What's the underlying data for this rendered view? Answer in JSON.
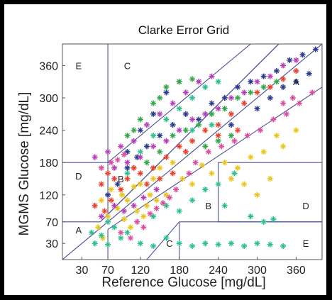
{
  "chart_data": {
    "type": "scatter",
    "title": "Clarke Error Grid",
    "xlabel": "Reference Glucose [mg/dL]",
    "ylabel": "MGMS Glucose [mg/dL]",
    "xlim": [
      0,
      400
    ],
    "ylim": [
      0,
      400
    ],
    "x_ticks": [
      30,
      70,
      120,
      180,
      240,
      300,
      360
    ],
    "y_ticks": [
      30,
      70,
      120,
      180,
      240,
      300,
      360
    ],
    "grid": false,
    "legend": "none",
    "zone_labels": [
      {
        "label": "A",
        "x": 25,
        "y": 55
      },
      {
        "label": "A",
        "x": 360,
        "y": 330
      },
      {
        "label": "B",
        "x": 90,
        "y": 150
      },
      {
        "label": "B",
        "x": 225,
        "y": 100
      },
      {
        "label": "C",
        "x": 100,
        "y": 360
      },
      {
        "label": "C",
        "x": 165,
        "y": 30
      },
      {
        "label": "D",
        "x": 25,
        "y": 155
      },
      {
        "label": "D",
        "x": 375,
        "y": 100
      },
      {
        "label": "E",
        "x": 25,
        "y": 360
      },
      {
        "label": "E",
        "x": 375,
        "y": 30
      }
    ],
    "series": [
      {
        "color": "#e8c61a",
        "points": [
          [
            55,
            60
          ],
          [
            62,
            40
          ],
          [
            70,
            80
          ],
          [
            85,
            95
          ],
          [
            92,
            120
          ],
          [
            100,
            110
          ],
          [
            110,
            135
          ],
          [
            120,
            140
          ],
          [
            130,
            100
          ],
          [
            140,
            150
          ],
          [
            150,
            170
          ],
          [
            160,
            120
          ],
          [
            170,
            180
          ],
          [
            185,
            150
          ],
          [
            200,
            140
          ],
          [
            215,
            175
          ],
          [
            230,
            160
          ],
          [
            250,
            180
          ],
          [
            270,
            170
          ],
          [
            290,
            190
          ],
          [
            310,
            200
          ],
          [
            330,
            230
          ],
          [
            95,
            75
          ],
          [
            105,
            60
          ],
          [
            115,
            90
          ],
          [
            125,
            80
          ],
          [
            135,
            120
          ],
          [
            145,
            110
          ],
          [
            60,
            110
          ],
          [
            75,
            130
          ],
          [
            260,
            150
          ],
          [
            280,
            140
          ],
          [
            300,
            120
          ],
          [
            320,
            150
          ],
          [
            340,
            210
          ],
          [
            360,
            240
          ]
        ]
      },
      {
        "color": "#2dbf8f",
        "points": [
          [
            50,
            30
          ],
          [
            60,
            45
          ],
          [
            70,
            28
          ],
          [
            80,
            60
          ],
          [
            90,
            40
          ],
          [
            100,
            50
          ],
          [
            120,
            30
          ],
          [
            140,
            25
          ],
          [
            160,
            40
          ],
          [
            180,
            30
          ],
          [
            200,
            25
          ],
          [
            220,
            30
          ],
          [
            240,
            28
          ],
          [
            260,
            30
          ],
          [
            280,
            25
          ],
          [
            300,
            30
          ],
          [
            320,
            28
          ],
          [
            340,
            25
          ],
          [
            140,
            80
          ],
          [
            160,
            100
          ],
          [
            180,
            90
          ],
          [
            200,
            110
          ],
          [
            220,
            130
          ],
          [
            240,
            140
          ],
          [
            250,
            100
          ],
          [
            265,
            160
          ],
          [
            290,
            80
          ],
          [
            310,
            70
          ],
          [
            325,
            75
          ],
          [
            100,
            160
          ],
          [
            120,
            200
          ],
          [
            140,
            230
          ],
          [
            160,
            260
          ],
          [
            180,
            280
          ],
          [
            200,
            300
          ],
          [
            220,
            320
          ],
          [
            240,
            330
          ],
          [
            200,
            240
          ],
          [
            230,
            250
          ],
          [
            70,
            70
          ],
          [
            45,
            50
          ]
        ]
      },
      {
        "color": "#2b3a8c",
        "points": [
          [
            70,
            120
          ],
          [
            85,
            140
          ],
          [
            100,
            170
          ],
          [
            115,
            190
          ],
          [
            130,
            210
          ],
          [
            150,
            230
          ],
          [
            170,
            250
          ],
          [
            190,
            270
          ],
          [
            210,
            260
          ],
          [
            230,
            290
          ],
          [
            250,
            300
          ],
          [
            270,
            320
          ],
          [
            290,
            330
          ],
          [
            310,
            340
          ],
          [
            330,
            350
          ],
          [
            350,
            370
          ],
          [
            370,
            380
          ],
          [
            390,
            390
          ],
          [
            160,
            310
          ],
          [
            180,
            330
          ],
          [
            300,
            280
          ],
          [
            320,
            300
          ],
          [
            340,
            320
          ],
          [
            360,
            330
          ],
          [
            380,
            345
          ],
          [
            100,
            200
          ],
          [
            120,
            240
          ],
          [
            140,
            270
          ],
          [
            260,
            250
          ]
        ]
      },
      {
        "color": "#e8402a",
        "points": [
          [
            60,
            140
          ],
          [
            70,
            160
          ],
          [
            80,
            150
          ],
          [
            90,
            130
          ],
          [
            100,
            150
          ],
          [
            110,
            170
          ],
          [
            120,
            160
          ],
          [
            130,
            140
          ],
          [
            140,
            170
          ],
          [
            160,
            190
          ],
          [
            180,
            210
          ],
          [
            200,
            220
          ],
          [
            220,
            240
          ],
          [
            240,
            250
          ],
          [
            260,
            270
          ],
          [
            280,
            290
          ],
          [
            300,
            310
          ],
          [
            320,
            320
          ],
          [
            340,
            335
          ],
          [
            360,
            350
          ],
          [
            50,
            100
          ],
          [
            65,
            90
          ],
          [
            75,
            110
          ],
          [
            150,
            150
          ],
          [
            170,
            160
          ],
          [
            190,
            200
          ],
          [
            240,
            230
          ],
          [
            270,
            240
          ]
        ]
      },
      {
        "color": "#b43fb8",
        "points": [
          [
            50,
            190
          ],
          [
            70,
            200
          ],
          [
            90,
            210
          ],
          [
            110,
            220
          ],
          [
            130,
            250
          ],
          [
            150,
            270
          ],
          [
            170,
            290
          ],
          [
            190,
            310
          ],
          [
            210,
            330
          ],
          [
            230,
            340
          ],
          [
            80,
            170
          ],
          [
            100,
            180
          ],
          [
            120,
            190
          ],
          [
            140,
            210
          ],
          [
            160,
            220
          ],
          [
            180,
            240
          ],
          [
            200,
            260
          ],
          [
            220,
            270
          ],
          [
            240,
            280
          ],
          [
            260,
            300
          ],
          [
            280,
            310
          ],
          [
            300,
            330
          ],
          [
            320,
            340
          ],
          [
            340,
            360
          ],
          [
            360,
            370
          ],
          [
            60,
            80
          ],
          [
            80,
            100
          ],
          [
            95,
            90
          ],
          [
            110,
            100
          ],
          [
            125,
            115
          ],
          [
            145,
            130
          ]
        ]
      },
      {
        "color": "#35a64a",
        "points": [
          [
            130,
            180
          ],
          [
            150,
            200
          ],
          [
            170,
            230
          ],
          [
            190,
            240
          ],
          [
            210,
            250
          ],
          [
            230,
            270
          ],
          [
            250,
            280
          ],
          [
            270,
            300
          ],
          [
            290,
            310
          ],
          [
            310,
            320
          ],
          [
            330,
            330
          ],
          [
            180,
            330
          ],
          [
            200,
            335
          ],
          [
            160,
            320
          ],
          [
            150,
            300
          ],
          [
            140,
            290
          ],
          [
            120,
            260
          ],
          [
            110,
            240
          ],
          [
            100,
            230
          ],
          [
            220,
            210
          ],
          [
            240,
            220
          ],
          [
            260,
            230
          ]
        ]
      },
      {
        "color": "#d94f9f",
        "points": [
          [
            90,
            50
          ],
          [
            105,
            40
          ],
          [
            115,
            70
          ],
          [
            125,
            60
          ],
          [
            135,
            85
          ],
          [
            145,
            95
          ],
          [
            155,
            105
          ],
          [
            165,
            115
          ],
          [
            175,
            130
          ],
          [
            195,
            160
          ],
          [
            205,
            180
          ],
          [
            225,
            200
          ],
          [
            245,
            210
          ],
          [
            265,
            220
          ],
          [
            285,
            230
          ],
          [
            305,
            240
          ],
          [
            325,
            260
          ],
          [
            345,
            270
          ],
          [
            365,
            290
          ],
          [
            385,
            310
          ],
          [
            60,
            170
          ],
          [
            75,
            180
          ],
          [
            85,
            185
          ],
          [
            95,
            195
          ],
          [
            340,
            290
          ],
          [
            355,
            300
          ]
        ]
      }
    ]
  }
}
